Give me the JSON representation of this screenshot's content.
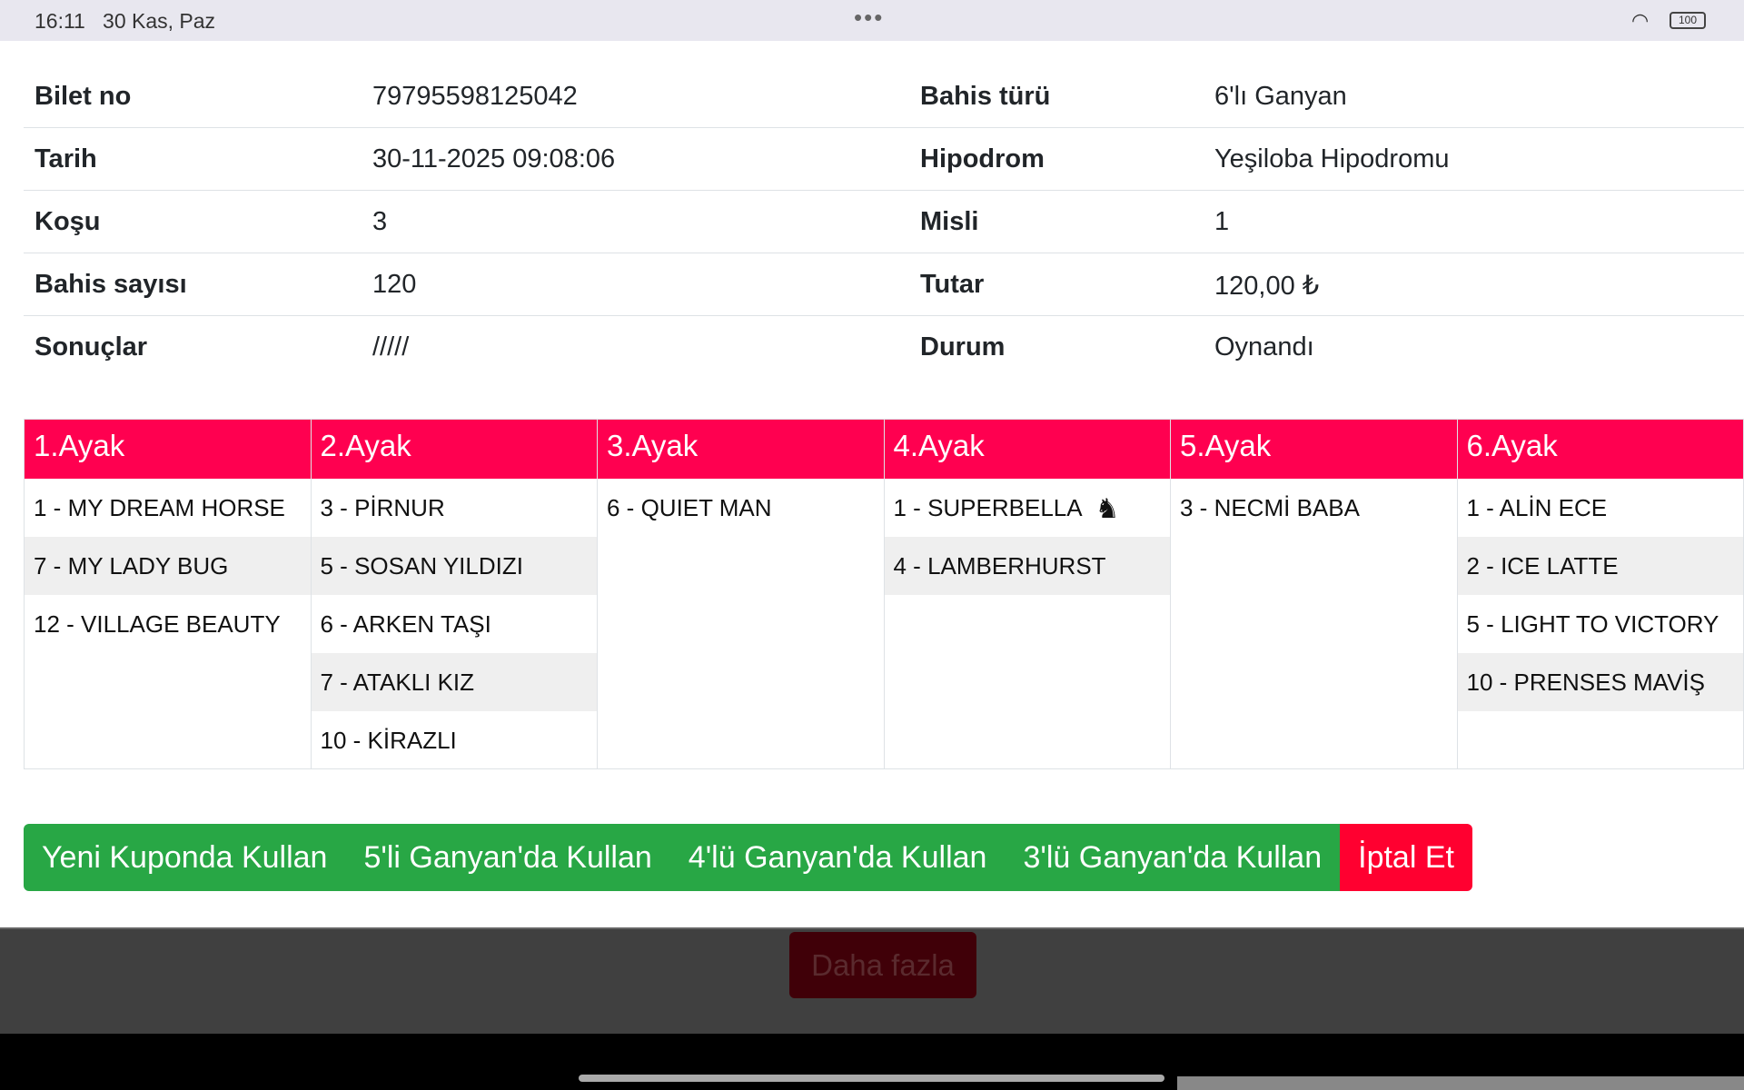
{
  "status_bar": {
    "time": "16:11",
    "date": "30 Kas, Paz",
    "battery": "100"
  },
  "info": [
    {
      "label": "Bilet no",
      "value": "79795598125042",
      "label2": "Bahis türü",
      "value2": "6'lı Ganyan"
    },
    {
      "label": "Tarih",
      "value": "30-11-2025 09:08:06",
      "label2": "Hipodrom",
      "value2": "Yeşiloba Hipodromu"
    },
    {
      "label": "Koşu",
      "value": "3",
      "label2": "Misli",
      "value2": "1"
    },
    {
      "label": "Bahis sayısı",
      "value": "120",
      "label2": "Tutar",
      "value2": "120,00 ₺"
    },
    {
      "label": "Sonuçlar",
      "value": "/////",
      "label2": "Durum",
      "value2": "Oynandı"
    }
  ],
  "legs": [
    {
      "title": "1.Ayak",
      "horses": [
        "1 - MY DREAM HORSE",
        "7 - MY LADY BUG",
        "12 - VILLAGE BEAUTY"
      ]
    },
    {
      "title": "2.Ayak",
      "horses": [
        "3 - PİRNUR",
        "5 - SOSAN YILDIZI",
        "6 - ARKEN TAŞI",
        "7 - ATAKLI KIZ",
        "10 - KİRAZLI"
      ]
    },
    {
      "title": "3.Ayak",
      "horses": [
        "6 - QUIET MAN"
      ]
    },
    {
      "title": "4.Ayak",
      "horses": [
        "1 - SUPERBELLA",
        "4 - LAMBERHURST"
      ]
    },
    {
      "title": "5.Ayak",
      "horses": [
        "3 - NECMİ BABA"
      ]
    },
    {
      "title": "6.Ayak",
      "horses": [
        "1 - ALİN ECE",
        "2 - ICE LATTE",
        "5 - LIGHT TO VICTORY",
        "10 - PRENSES MAVİŞ"
      ]
    }
  ],
  "actions": {
    "new_coupon": "Yeni Kuponda Kullan",
    "five": "5'li Ganyan'da Kullan",
    "four": "4'lü Ganyan'da Kullan",
    "three": "3'lü Ganyan'da Kullan",
    "cancel": "İptal Et"
  },
  "more_label": "Daha fazla",
  "colors": {
    "header": "#ff0050",
    "green": "#28a745",
    "red": "#ff0030"
  }
}
